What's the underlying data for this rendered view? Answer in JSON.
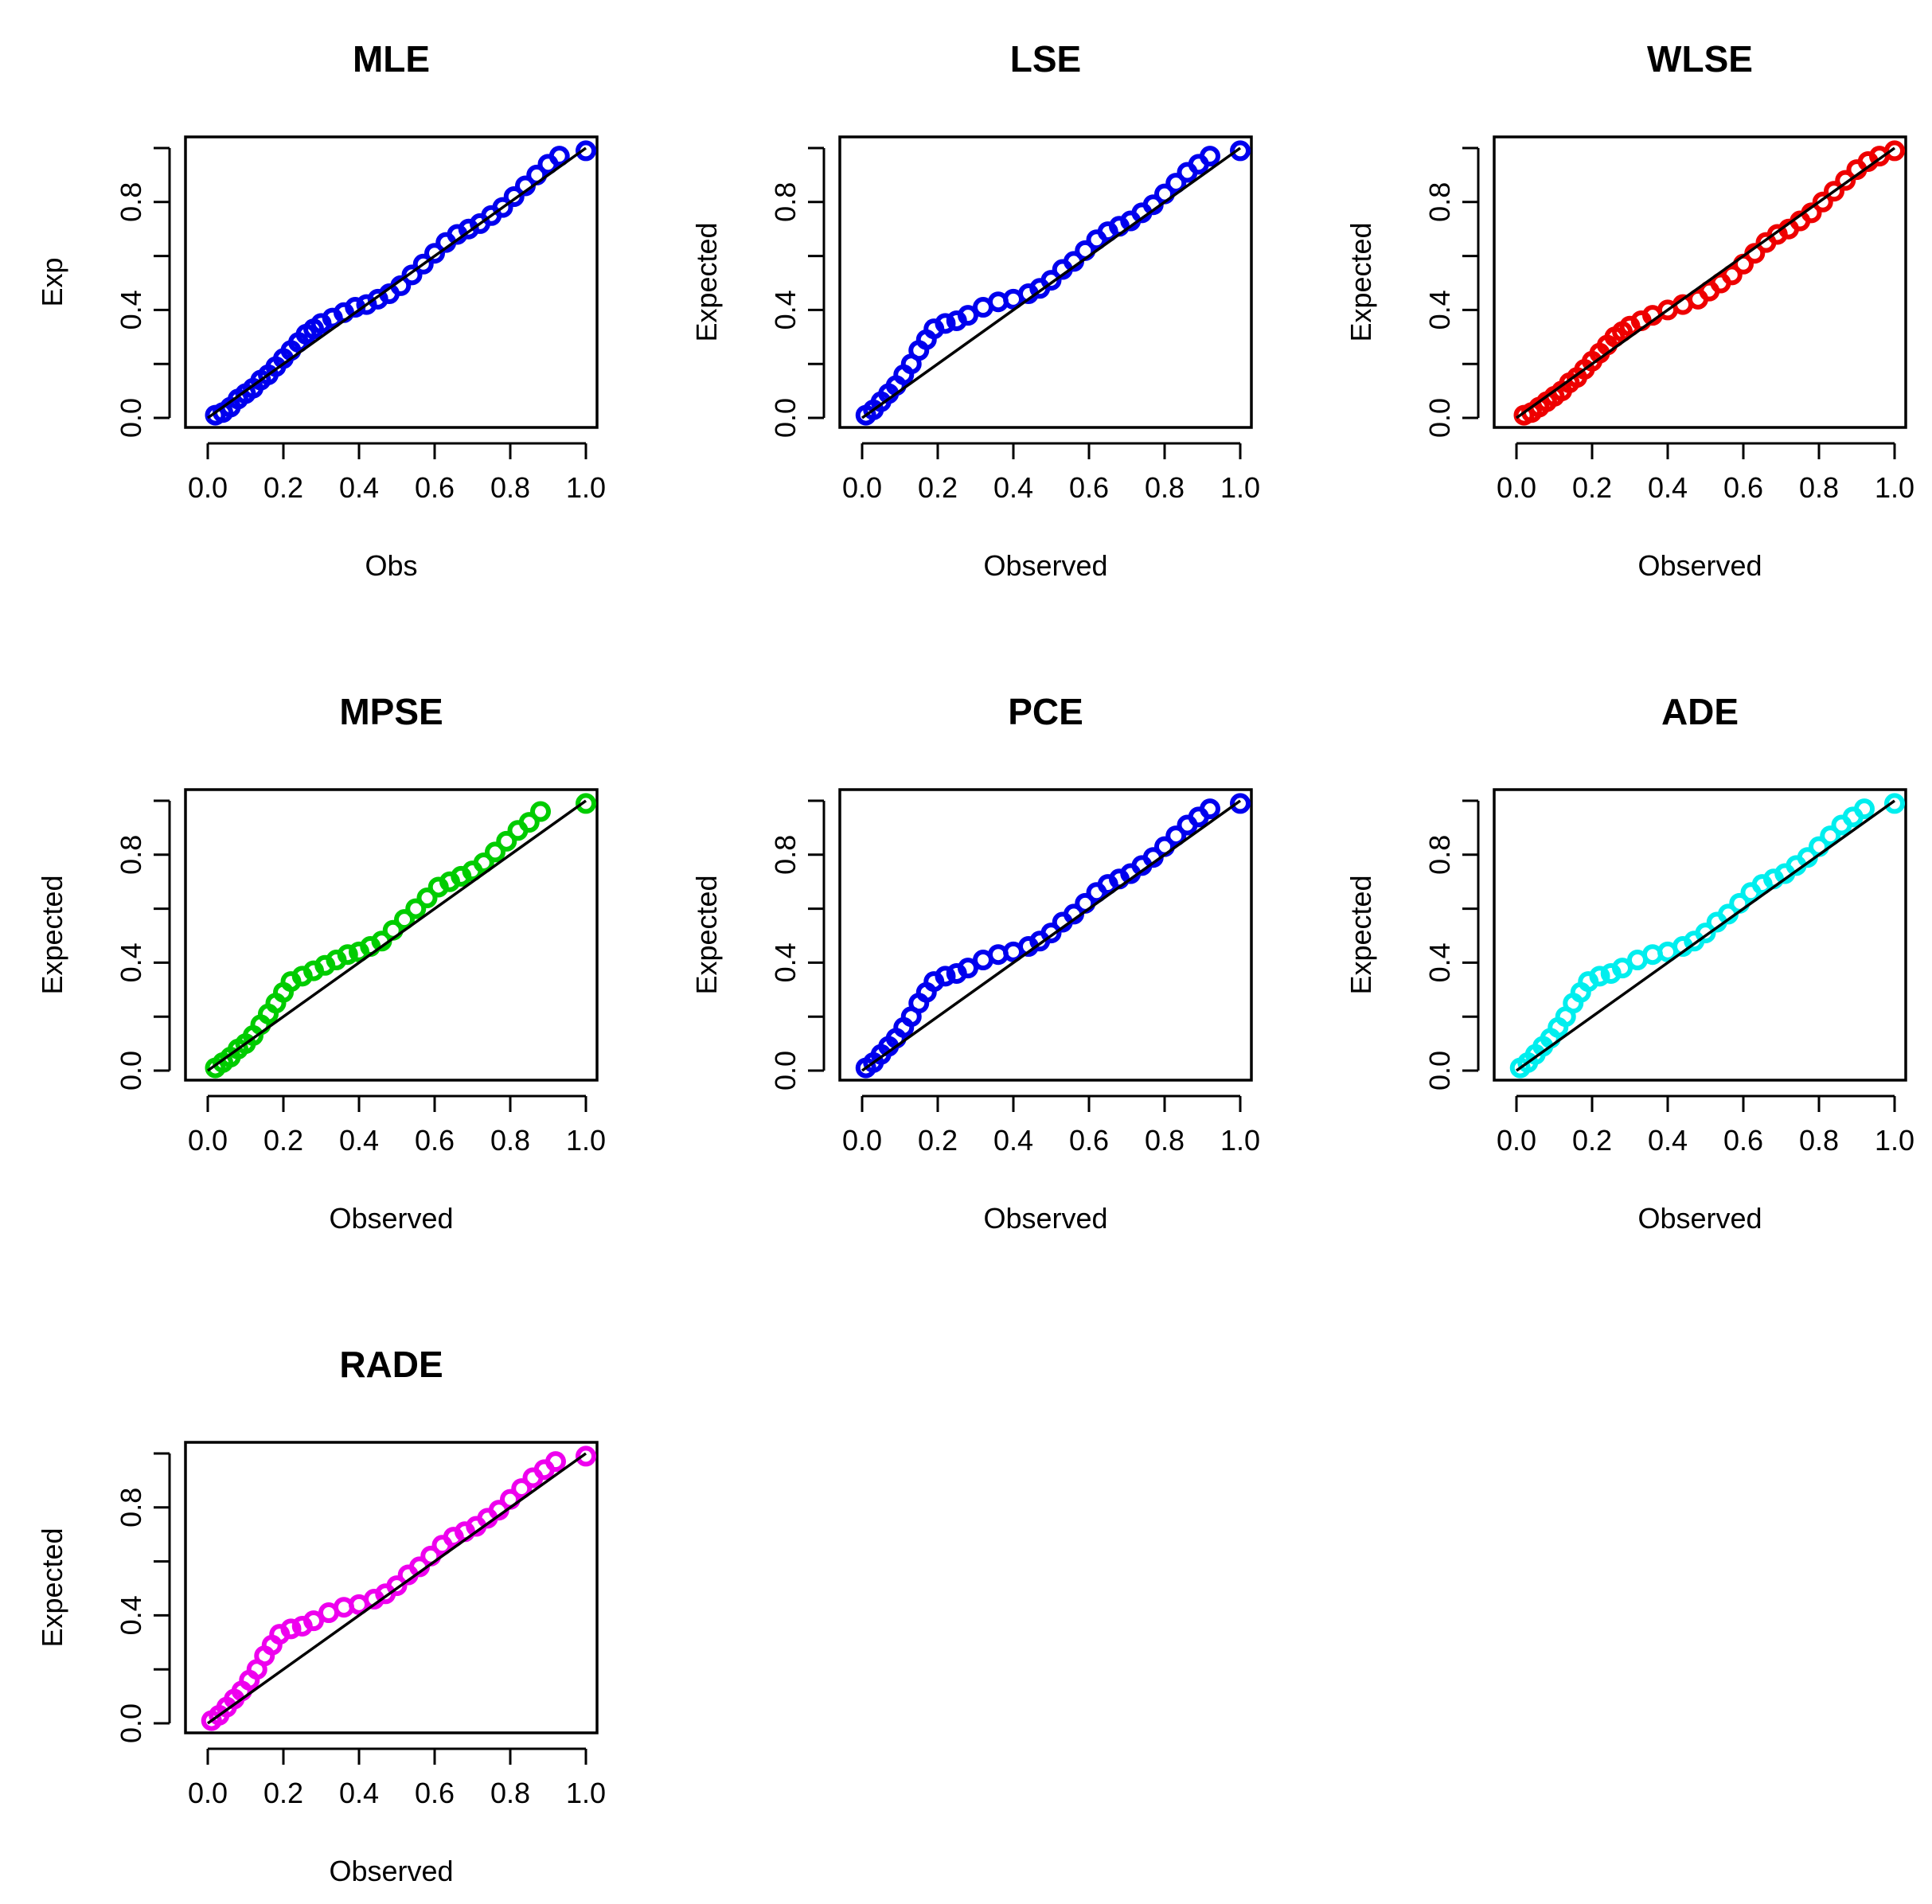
{
  "chart_data": [
    {
      "type": "scatter",
      "title": "MLE",
      "xlabel": "Obs",
      "ylabel": "Exp",
      "xlim": [
        0,
        1
      ],
      "ylim": [
        0,
        1
      ],
      "xticks": [
        "0.0",
        "0.2",
        "0.4",
        "0.6",
        "0.8",
        "1.0"
      ],
      "yticks": [
        "0.0",
        "0.4",
        "0.8"
      ],
      "color": "#0000ee",
      "reference_line": [
        [
          0,
          0
        ],
        [
          1,
          1
        ]
      ],
      "points": [
        [
          0.02,
          0.01
        ],
        [
          0.04,
          0.02
        ],
        [
          0.06,
          0.04
        ],
        [
          0.08,
          0.07
        ],
        [
          0.1,
          0.09
        ],
        [
          0.12,
          0.11
        ],
        [
          0.14,
          0.14
        ],
        [
          0.16,
          0.16
        ],
        [
          0.18,
          0.19
        ],
        [
          0.2,
          0.22
        ],
        [
          0.22,
          0.25
        ],
        [
          0.24,
          0.28
        ],
        [
          0.26,
          0.31
        ],
        [
          0.28,
          0.33
        ],
        [
          0.3,
          0.35
        ],
        [
          0.33,
          0.37
        ],
        [
          0.36,
          0.39
        ],
        [
          0.39,
          0.41
        ],
        [
          0.42,
          0.42
        ],
        [
          0.45,
          0.44
        ],
        [
          0.48,
          0.46
        ],
        [
          0.51,
          0.49
        ],
        [
          0.54,
          0.53
        ],
        [
          0.57,
          0.57
        ],
        [
          0.6,
          0.61
        ],
        [
          0.63,
          0.65
        ],
        [
          0.66,
          0.68
        ],
        [
          0.69,
          0.7
        ],
        [
          0.72,
          0.72
        ],
        [
          0.75,
          0.75
        ],
        [
          0.78,
          0.78
        ],
        [
          0.81,
          0.82
        ],
        [
          0.84,
          0.86
        ],
        [
          0.87,
          0.9
        ],
        [
          0.9,
          0.94
        ],
        [
          0.93,
          0.97
        ],
        [
          1.0,
          0.99
        ]
      ]
    },
    {
      "type": "scatter",
      "title": "LSE",
      "xlabel": "Observed",
      "ylabel": "Expected",
      "xlim": [
        0,
        1
      ],
      "ylim": [
        0,
        1
      ],
      "xticks": [
        "0.0",
        "0.2",
        "0.4",
        "0.6",
        "0.8",
        "1.0"
      ],
      "yticks": [
        "0.0",
        "0.4",
        "0.8"
      ],
      "color": "#0000ee",
      "reference_line": [
        [
          0,
          0
        ],
        [
          1,
          1
        ]
      ],
      "points": [
        [
          0.01,
          0.01
        ],
        [
          0.03,
          0.03
        ],
        [
          0.05,
          0.06
        ],
        [
          0.07,
          0.09
        ],
        [
          0.09,
          0.12
        ],
        [
          0.11,
          0.16
        ],
        [
          0.13,
          0.2
        ],
        [
          0.15,
          0.25
        ],
        [
          0.17,
          0.29
        ],
        [
          0.19,
          0.33
        ],
        [
          0.22,
          0.35
        ],
        [
          0.25,
          0.36
        ],
        [
          0.28,
          0.38
        ],
        [
          0.32,
          0.41
        ],
        [
          0.36,
          0.43
        ],
        [
          0.4,
          0.44
        ],
        [
          0.44,
          0.46
        ],
        [
          0.47,
          0.48
        ],
        [
          0.5,
          0.51
        ],
        [
          0.53,
          0.55
        ],
        [
          0.56,
          0.58
        ],
        [
          0.59,
          0.62
        ],
        [
          0.62,
          0.66
        ],
        [
          0.65,
          0.69
        ],
        [
          0.68,
          0.71
        ],
        [
          0.71,
          0.73
        ],
        [
          0.74,
          0.76
        ],
        [
          0.77,
          0.79
        ],
        [
          0.8,
          0.83
        ],
        [
          0.83,
          0.87
        ],
        [
          0.86,
          0.91
        ],
        [
          0.89,
          0.94
        ],
        [
          0.92,
          0.97
        ],
        [
          1.0,
          0.99
        ]
      ]
    },
    {
      "type": "scatter",
      "title": "WLSE",
      "xlabel": "Observed",
      "ylabel": "Expected",
      "xlim": [
        0,
        1
      ],
      "ylim": [
        0,
        1
      ],
      "xticks": [
        "0.0",
        "0.2",
        "0.4",
        "0.6",
        "0.8",
        "1.0"
      ],
      "yticks": [
        "0.0",
        "0.4",
        "0.8"
      ],
      "color": "#ee0000",
      "reference_line": [
        [
          0,
          0
        ],
        [
          1,
          1
        ]
      ],
      "points": [
        [
          0.02,
          0.01
        ],
        [
          0.04,
          0.02
        ],
        [
          0.06,
          0.04
        ],
        [
          0.08,
          0.06
        ],
        [
          0.1,
          0.08
        ],
        [
          0.12,
          0.1
        ],
        [
          0.14,
          0.13
        ],
        [
          0.16,
          0.15
        ],
        [
          0.18,
          0.18
        ],
        [
          0.2,
          0.21
        ],
        [
          0.22,
          0.24
        ],
        [
          0.24,
          0.27
        ],
        [
          0.26,
          0.3
        ],
        [
          0.28,
          0.32
        ],
        [
          0.3,
          0.34
        ],
        [
          0.33,
          0.36
        ],
        [
          0.36,
          0.38
        ],
        [
          0.4,
          0.4
        ],
        [
          0.44,
          0.42
        ],
        [
          0.48,
          0.44
        ],
        [
          0.51,
          0.47
        ],
        [
          0.54,
          0.5
        ],
        [
          0.57,
          0.53
        ],
        [
          0.6,
          0.57
        ],
        [
          0.63,
          0.61
        ],
        [
          0.66,
          0.65
        ],
        [
          0.69,
          0.68
        ],
        [
          0.72,
          0.7
        ],
        [
          0.75,
          0.73
        ],
        [
          0.78,
          0.76
        ],
        [
          0.81,
          0.8
        ],
        [
          0.84,
          0.84
        ],
        [
          0.87,
          0.88
        ],
        [
          0.9,
          0.92
        ],
        [
          0.93,
          0.95
        ],
        [
          0.96,
          0.97
        ],
        [
          1.0,
          0.99
        ]
      ]
    },
    {
      "type": "scatter",
      "title": "MPSE",
      "xlabel": "Observed",
      "ylabel": "Expected",
      "xlim": [
        0,
        1
      ],
      "ylim": [
        0,
        1
      ],
      "xticks": [
        "0.0",
        "0.2",
        "0.4",
        "0.6",
        "0.8",
        "1.0"
      ],
      "yticks": [
        "0.0",
        "0.4",
        "0.8"
      ],
      "color": "#00cc00",
      "reference_line": [
        [
          0,
          0
        ],
        [
          1,
          1
        ]
      ],
      "points": [
        [
          0.02,
          0.01
        ],
        [
          0.04,
          0.03
        ],
        [
          0.06,
          0.05
        ],
        [
          0.08,
          0.08
        ],
        [
          0.1,
          0.1
        ],
        [
          0.12,
          0.13
        ],
        [
          0.14,
          0.17
        ],
        [
          0.16,
          0.21
        ],
        [
          0.18,
          0.25
        ],
        [
          0.2,
          0.29
        ],
        [
          0.22,
          0.33
        ],
        [
          0.25,
          0.35
        ],
        [
          0.28,
          0.37
        ],
        [
          0.31,
          0.39
        ],
        [
          0.34,
          0.41
        ],
        [
          0.37,
          0.43
        ],
        [
          0.4,
          0.44
        ],
        [
          0.43,
          0.46
        ],
        [
          0.46,
          0.48
        ],
        [
          0.49,
          0.52
        ],
        [
          0.52,
          0.56
        ],
        [
          0.55,
          0.6
        ],
        [
          0.58,
          0.64
        ],
        [
          0.61,
          0.68
        ],
        [
          0.64,
          0.7
        ],
        [
          0.67,
          0.72
        ],
        [
          0.7,
          0.74
        ],
        [
          0.73,
          0.77
        ],
        [
          0.76,
          0.81
        ],
        [
          0.79,
          0.85
        ],
        [
          0.82,
          0.89
        ],
        [
          0.85,
          0.92
        ],
        [
          0.88,
          0.96
        ],
        [
          1.0,
          0.99
        ]
      ]
    },
    {
      "type": "scatter",
      "title": "PCE",
      "xlabel": "Observed",
      "ylabel": "Expected",
      "xlim": [
        0,
        1
      ],
      "ylim": [
        0,
        1
      ],
      "xticks": [
        "0.0",
        "0.2",
        "0.4",
        "0.6",
        "0.8",
        "1.0"
      ],
      "yticks": [
        "0.0",
        "0.4",
        "0.8"
      ],
      "color": "#0000ee",
      "reference_line": [
        [
          0,
          0
        ],
        [
          1,
          1
        ]
      ],
      "points": [
        [
          0.01,
          0.01
        ],
        [
          0.03,
          0.03
        ],
        [
          0.05,
          0.06
        ],
        [
          0.07,
          0.09
        ],
        [
          0.09,
          0.12
        ],
        [
          0.11,
          0.16
        ],
        [
          0.13,
          0.2
        ],
        [
          0.15,
          0.25
        ],
        [
          0.17,
          0.29
        ],
        [
          0.19,
          0.33
        ],
        [
          0.22,
          0.35
        ],
        [
          0.25,
          0.36
        ],
        [
          0.28,
          0.38
        ],
        [
          0.32,
          0.41
        ],
        [
          0.36,
          0.43
        ],
        [
          0.4,
          0.44
        ],
        [
          0.44,
          0.46
        ],
        [
          0.47,
          0.48
        ],
        [
          0.5,
          0.51
        ],
        [
          0.53,
          0.55
        ],
        [
          0.56,
          0.58
        ],
        [
          0.59,
          0.62
        ],
        [
          0.62,
          0.66
        ],
        [
          0.65,
          0.69
        ],
        [
          0.68,
          0.71
        ],
        [
          0.71,
          0.73
        ],
        [
          0.74,
          0.76
        ],
        [
          0.77,
          0.79
        ],
        [
          0.8,
          0.83
        ],
        [
          0.83,
          0.87
        ],
        [
          0.86,
          0.91
        ],
        [
          0.89,
          0.94
        ],
        [
          0.92,
          0.97
        ],
        [
          1.0,
          0.99
        ]
      ]
    },
    {
      "type": "scatter",
      "title": "ADE",
      "xlabel": "Observed",
      "ylabel": "Expected",
      "xlim": [
        0,
        1
      ],
      "ylim": [
        0,
        1
      ],
      "xticks": [
        "0.0",
        "0.2",
        "0.4",
        "0.6",
        "0.8",
        "1.0"
      ],
      "yticks": [
        "0.0",
        "0.4",
        "0.8"
      ],
      "color": "#00eeee",
      "reference_line": [
        [
          0,
          0
        ],
        [
          1,
          1
        ]
      ],
      "points": [
        [
          0.01,
          0.01
        ],
        [
          0.03,
          0.03
        ],
        [
          0.05,
          0.06
        ],
        [
          0.07,
          0.09
        ],
        [
          0.09,
          0.12
        ],
        [
          0.11,
          0.16
        ],
        [
          0.13,
          0.2
        ],
        [
          0.15,
          0.25
        ],
        [
          0.17,
          0.29
        ],
        [
          0.19,
          0.33
        ],
        [
          0.22,
          0.35
        ],
        [
          0.25,
          0.36
        ],
        [
          0.28,
          0.38
        ],
        [
          0.32,
          0.41
        ],
        [
          0.36,
          0.43
        ],
        [
          0.4,
          0.44
        ],
        [
          0.44,
          0.46
        ],
        [
          0.47,
          0.48
        ],
        [
          0.5,
          0.51
        ],
        [
          0.53,
          0.55
        ],
        [
          0.56,
          0.58
        ],
        [
          0.59,
          0.62
        ],
        [
          0.62,
          0.66
        ],
        [
          0.65,
          0.69
        ],
        [
          0.68,
          0.71
        ],
        [
          0.71,
          0.73
        ],
        [
          0.74,
          0.76
        ],
        [
          0.77,
          0.79
        ],
        [
          0.8,
          0.83
        ],
        [
          0.83,
          0.87
        ],
        [
          0.86,
          0.91
        ],
        [
          0.89,
          0.94
        ],
        [
          0.92,
          0.97
        ],
        [
          1.0,
          0.99
        ]
      ]
    },
    {
      "type": "scatter",
      "title": "RADE",
      "xlabel": "Observed",
      "ylabel": "Expected",
      "xlim": [
        0,
        1
      ],
      "ylim": [
        0,
        1
      ],
      "xticks": [
        "0.0",
        "0.2",
        "0.4",
        "0.6",
        "0.8",
        "1.0"
      ],
      "yticks": [
        "0.0",
        "0.4",
        "0.8"
      ],
      "color": "#ee00ee",
      "reference_line": [
        [
          0,
          0
        ],
        [
          1,
          1
        ]
      ],
      "points": [
        [
          0.01,
          0.01
        ],
        [
          0.03,
          0.03
        ],
        [
          0.05,
          0.06
        ],
        [
          0.07,
          0.09
        ],
        [
          0.09,
          0.12
        ],
        [
          0.11,
          0.16
        ],
        [
          0.13,
          0.2
        ],
        [
          0.15,
          0.25
        ],
        [
          0.17,
          0.29
        ],
        [
          0.19,
          0.33
        ],
        [
          0.22,
          0.35
        ],
        [
          0.25,
          0.36
        ],
        [
          0.28,
          0.38
        ],
        [
          0.32,
          0.41
        ],
        [
          0.36,
          0.43
        ],
        [
          0.4,
          0.44
        ],
        [
          0.44,
          0.46
        ],
        [
          0.47,
          0.48
        ],
        [
          0.5,
          0.51
        ],
        [
          0.53,
          0.55
        ],
        [
          0.56,
          0.58
        ],
        [
          0.59,
          0.62
        ],
        [
          0.62,
          0.66
        ],
        [
          0.65,
          0.69
        ],
        [
          0.68,
          0.71
        ],
        [
          0.71,
          0.73
        ],
        [
          0.74,
          0.76
        ],
        [
          0.77,
          0.79
        ],
        [
          0.8,
          0.83
        ],
        [
          0.83,
          0.87
        ],
        [
          0.86,
          0.91
        ],
        [
          0.89,
          0.94
        ],
        [
          0.92,
          0.97
        ],
        [
          1.0,
          0.99
        ]
      ]
    }
  ]
}
